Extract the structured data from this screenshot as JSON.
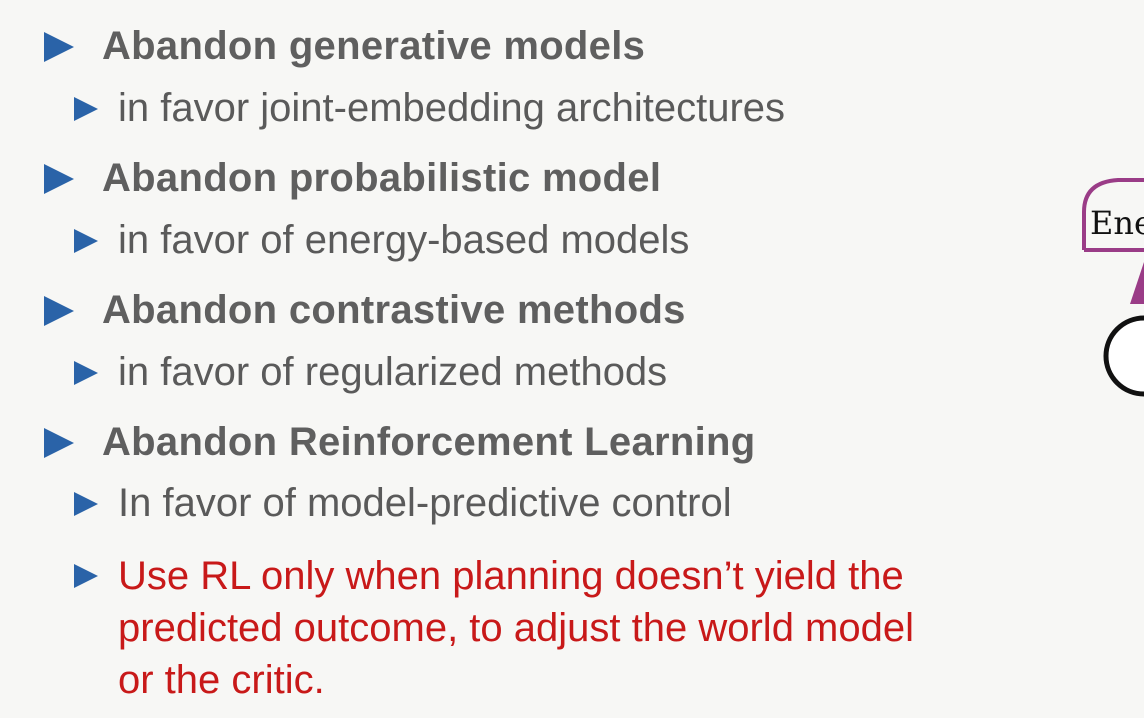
{
  "bullets": [
    {
      "title": "Abandon generative models",
      "sub": [
        "in favor joint-embedding architectures"
      ]
    },
    {
      "title": "Abandon probabilistic model",
      "sub": [
        "in favor of energy-based models"
      ]
    },
    {
      "title": "Abandon contrastive methods",
      "sub": [
        "in favor of regularized methods"
      ]
    },
    {
      "title": "Abandon Reinforcement Learning",
      "sub": [
        "In favor of model-predictive control"
      ],
      "note_lines": [
        "Use RL only when planning doesn’t yield the",
        "predicted outcome, to adjust the world model",
        "or the critic."
      ]
    }
  ],
  "side_diagram": {
    "label": "Ene"
  },
  "colors": {
    "bullet": "#2a63a8",
    "heading": "#5f5f5f",
    "highlight": "#c81919",
    "diagram": "#9a3c87"
  }
}
